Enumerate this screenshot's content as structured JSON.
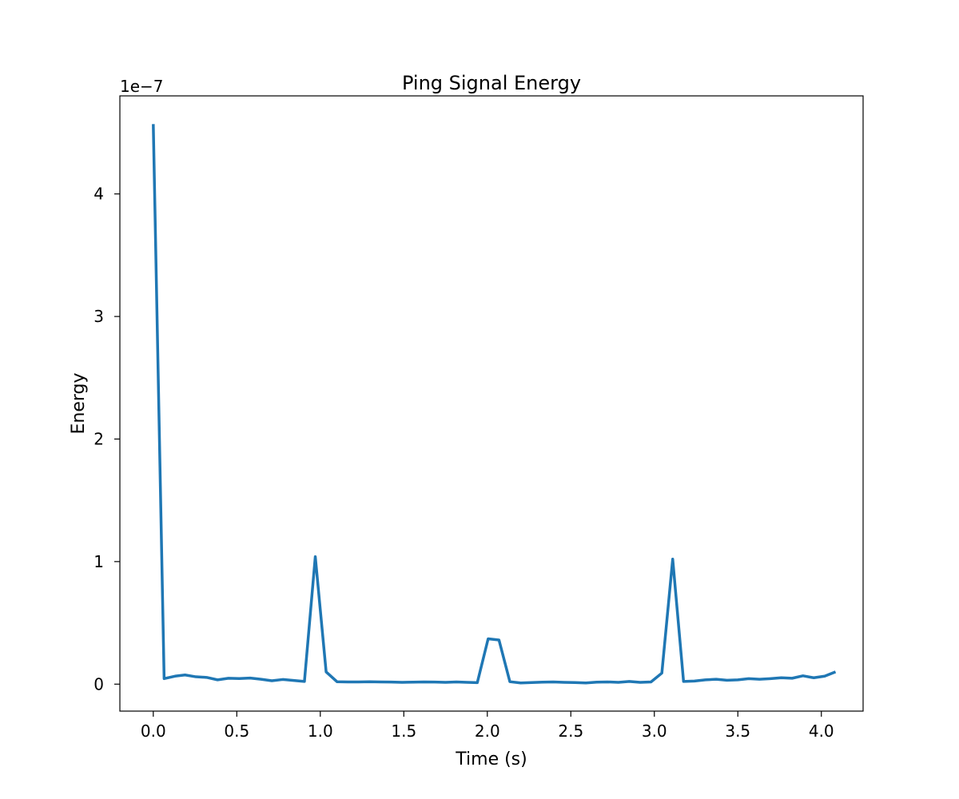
{
  "chart_data": {
    "type": "line",
    "title": "Ping Signal Energy",
    "xlabel": "Time (s)",
    "ylabel": "Energy",
    "y_offset_label": "1e−7",
    "y_scale": 1e-07,
    "xlim": [
      -0.2,
      4.25
    ],
    "ylim": [
      -2.2e-08,
      4.8e-07
    ],
    "xticks": [
      0.0,
      0.5,
      1.0,
      1.5,
      2.0,
      2.5,
      3.0,
      3.5,
      4.0
    ],
    "xtick_labels": [
      "0.0",
      "0.5",
      "1.0",
      "1.5",
      "2.0",
      "2.5",
      "3.0",
      "3.5",
      "4.0"
    ],
    "yticks": [
      0,
      1e-07,
      2e-07,
      3e-07,
      4e-07
    ],
    "ytick_labels": [
      "0",
      "1",
      "2",
      "3",
      "4"
    ],
    "grid": false,
    "color": "#1f77b4",
    "series": [
      {
        "x": [
          0.0,
          0.065,
          0.13,
          0.19,
          0.255,
          0.32,
          0.385,
          0.45,
          0.515,
          0.58,
          0.645,
          0.71,
          0.775,
          0.84,
          0.905,
          0.97,
          1.035,
          1.1,
          1.165,
          1.23,
          1.295,
          1.36,
          1.425,
          1.49,
          1.555,
          1.62,
          1.685,
          1.75,
          1.815,
          1.88,
          1.94,
          2.005,
          2.07,
          2.135,
          2.2,
          2.265,
          2.33,
          2.395,
          2.46,
          2.525,
          2.59,
          2.655,
          2.72,
          2.785,
          2.85,
          2.915,
          2.98,
          3.045,
          3.11,
          3.175,
          3.24,
          3.305,
          3.37,
          3.435,
          3.5,
          3.565,
          3.63,
          3.695,
          3.76,
          3.825,
          3.89,
          3.955,
          4.02,
          4.085
        ],
        "y": [
          4.57e-07,
          4.5e-09,
          6.5e-09,
          7.5e-09,
          6e-09,
          5.5e-09,
          3.5e-09,
          4.8e-09,
          4.6e-09,
          5e-09,
          4e-09,
          2.8e-09,
          3.8e-09,
          3e-09,
          2.2e-09,
          1.04e-07,
          1e-08,
          2e-09,
          1.8e-09,
          1.8e-09,
          2e-09,
          1.8e-09,
          1.7e-09,
          1.5e-09,
          1.6e-09,
          1.8e-09,
          1.7e-09,
          1.5e-09,
          1.8e-09,
          1.5e-09,
          1.2e-09,
          3.7e-08,
          3.6e-08,
          2e-09,
          1e-09,
          1.3e-09,
          1.6e-09,
          1.8e-09,
          1.5e-09,
          1.3e-09,
          1e-09,
          1.6e-09,
          1.8e-09,
          1.5e-09,
          2.2e-09,
          1.5e-09,
          1.8e-09,
          9e-09,
          1.02e-07,
          2.2e-09,
          2.5e-09,
          3.5e-09,
          4e-09,
          3.2e-09,
          3.5e-09,
          4.5e-09,
          4e-09,
          4.5e-09,
          5.2e-09,
          4.8e-09,
          6.8e-09,
          5.2e-09,
          6.5e-09,
          1e-08
        ]
      }
    ]
  }
}
